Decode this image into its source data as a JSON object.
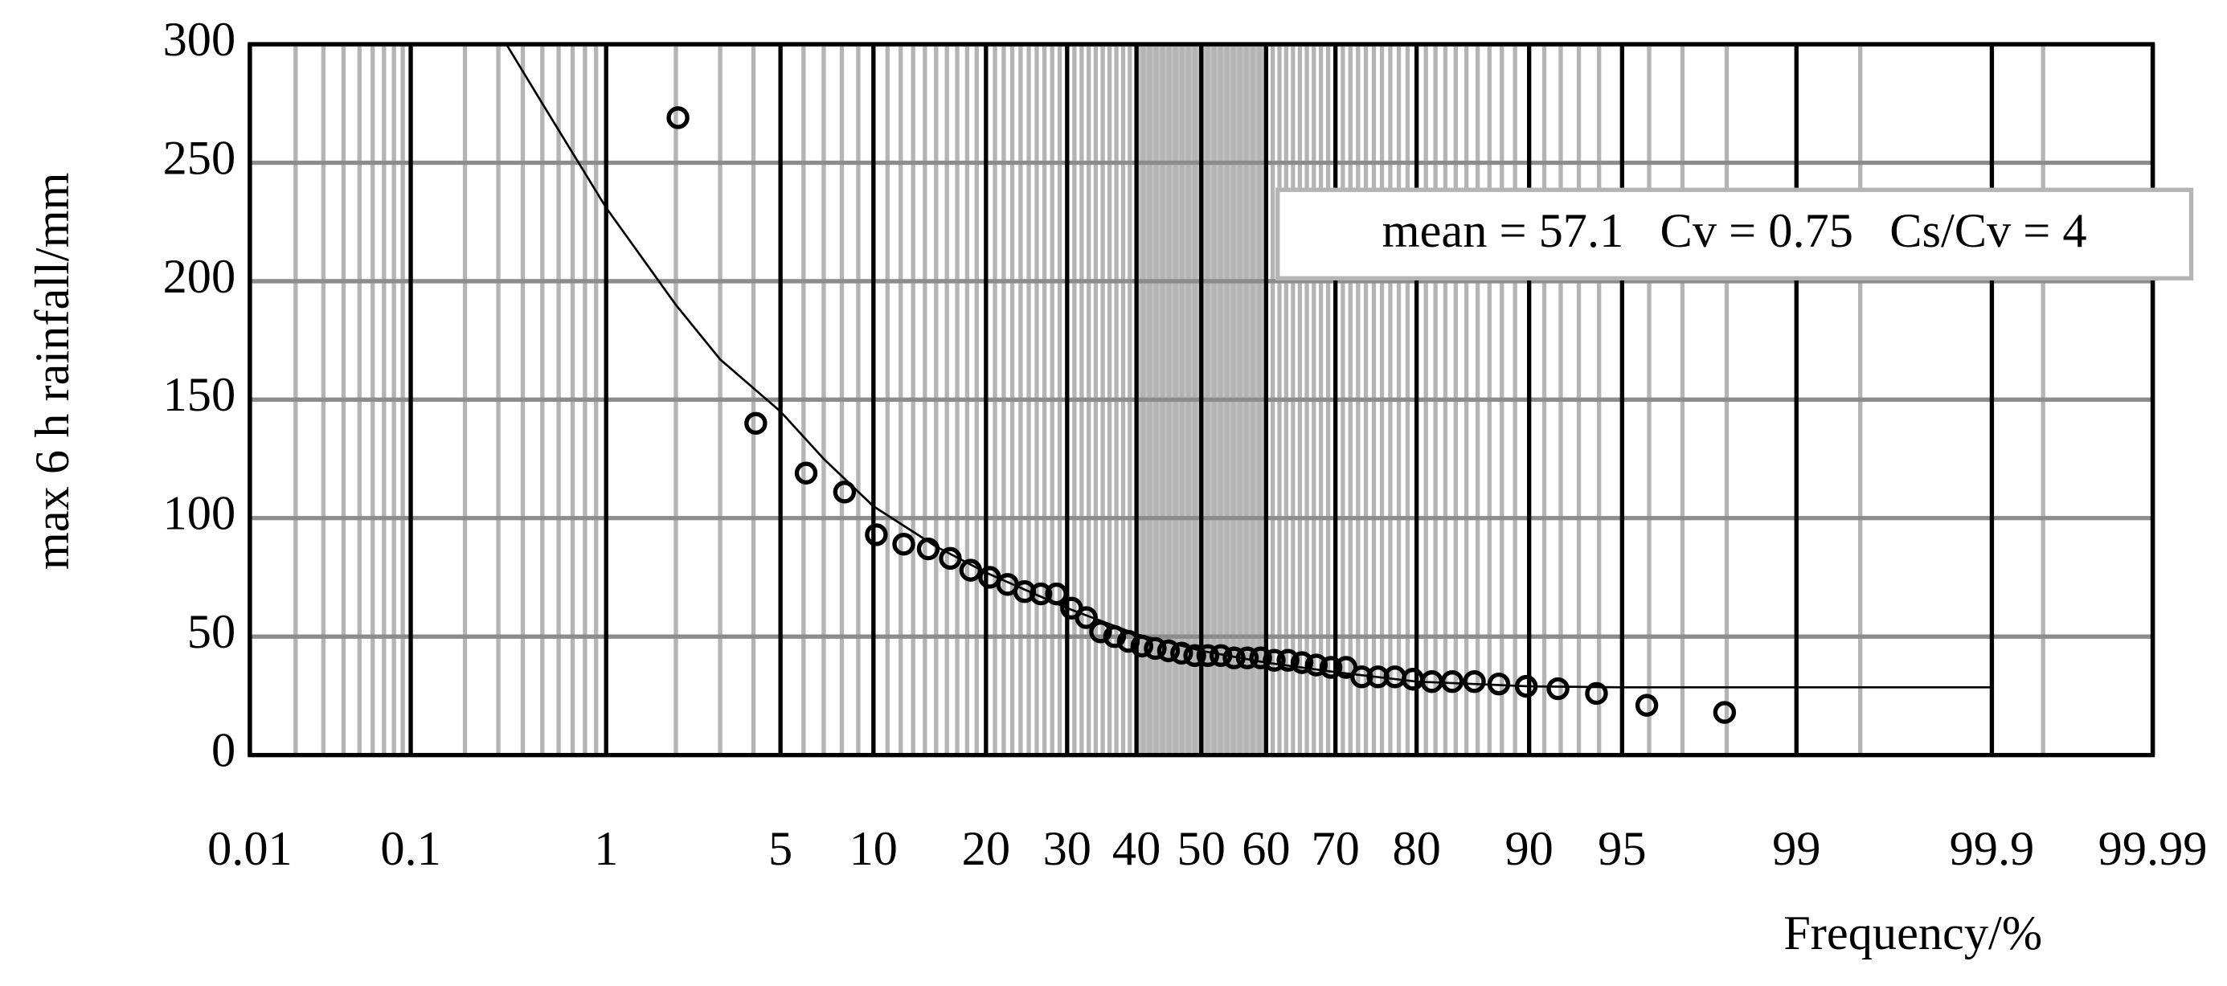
{
  "chart_data": {
    "type": "probability-scatter",
    "xlabel": "Frequency/%",
    "ylabel": "max 6 h rainfall/mm",
    "annotation": "mean = 57.1   Cv = 0.75   Cs/Cv = 4",
    "xscale": "normal-probability",
    "xlim": [
      0.01,
      99.99
    ],
    "xticks": [
      0.01,
      0.1,
      1,
      5,
      10,
      20,
      30,
      40,
      50,
      60,
      70,
      80,
      90,
      95,
      99,
      99.9,
      99.99
    ],
    "xminor": [
      0.02,
      0.03,
      0.04,
      0.05,
      0.06,
      0.07,
      0.08,
      0.09,
      0.2,
      0.3,
      0.4,
      0.5,
      0.6,
      0.7,
      0.8,
      0.9,
      2,
      3,
      4,
      6,
      7,
      8,
      9,
      11,
      12,
      13,
      14,
      15,
      16,
      17,
      18,
      19,
      21,
      22,
      23,
      24,
      25,
      26,
      27,
      28,
      29,
      31,
      32,
      33,
      34,
      35,
      36,
      37,
      38,
      39,
      41,
      42,
      43,
      44,
      45,
      46,
      47,
      48,
      49,
      51,
      52,
      53,
      54,
      55,
      56,
      57,
      58,
      59,
      61,
      62,
      63,
      64,
      65,
      66,
      67,
      68,
      69,
      71,
      72,
      73,
      74,
      75,
      76,
      77,
      78,
      79,
      81,
      82,
      83,
      84,
      85,
      86,
      87,
      88,
      89,
      91,
      92,
      93,
      94,
      96,
      97,
      98,
      99.5,
      99.95
    ],
    "shaded_range": [
      40,
      60
    ],
    "ylim": [
      0,
      300
    ],
    "yticks": [
      0,
      50,
      100,
      150,
      200,
      250,
      300
    ],
    "grid": true,
    "points": {
      "x": [
        2.04,
        4.08,
        6.12,
        8.16,
        10.2,
        12.24,
        14.29,
        16.33,
        18.37,
        20.41,
        22.45,
        24.49,
        26.53,
        28.57,
        30.61,
        32.65,
        34.69,
        36.73,
        38.78,
        40.82,
        42.86,
        44.9,
        46.94,
        48.98,
        51.02,
        53.06,
        55.1,
        57.14,
        59.18,
        61.22,
        63.27,
        65.31,
        67.35,
        69.39,
        71.43,
        73.47,
        75.51,
        77.55,
        79.59,
        81.63,
        83.67,
        85.71,
        87.76,
        89.8,
        91.84,
        93.88,
        95.92,
        97.96
      ],
      "y": [
        269,
        140,
        119,
        111,
        93,
        89,
        87,
        83,
        78,
        75,
        72,
        69,
        68,
        68,
        62,
        58,
        52,
        50,
        48,
        46,
        45,
        44,
        43,
        42,
        42,
        42,
        41,
        41,
        41,
        40,
        40,
        39,
        38,
        37,
        37,
        33,
        33,
        33,
        32,
        31,
        31,
        31,
        30,
        29,
        28,
        26,
        21,
        18
      ]
    },
    "curve": {
      "x": [
        0.33,
        0.5,
        1,
        2,
        3,
        5,
        7,
        10,
        15,
        20,
        30,
        40,
        50,
        60,
        70,
        80,
        90,
        95,
        99,
        99.9
      ],
      "y": [
        300,
        275,
        231,
        190,
        167,
        145,
        125,
        105,
        88,
        77,
        62,
        51,
        44,
        39,
        35,
        31,
        29,
        28.6,
        28.6,
        28.6
      ]
    }
  }
}
